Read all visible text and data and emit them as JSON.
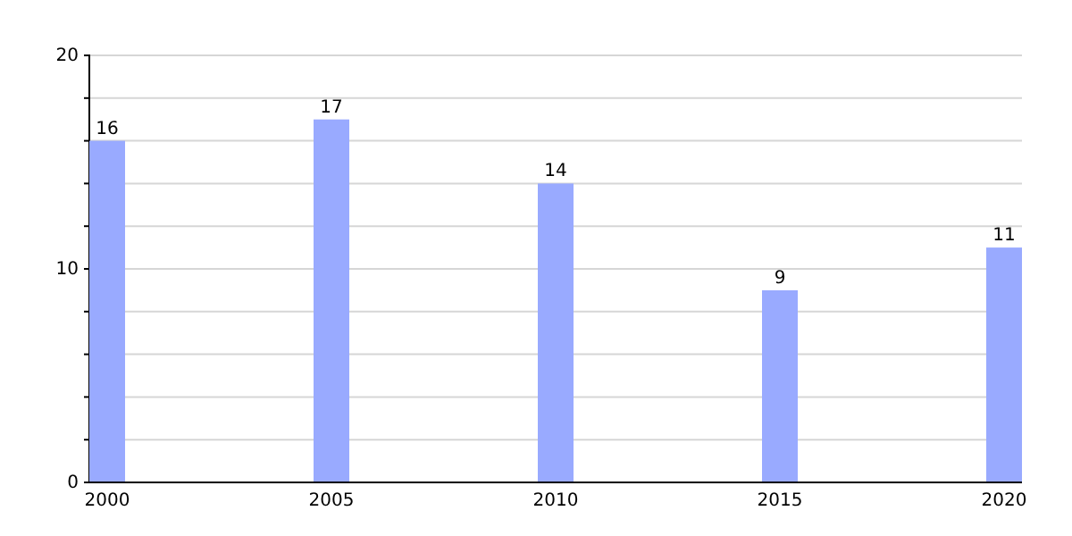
{
  "chart_data": {
    "type": "bar",
    "categories": [
      "2000",
      "2005",
      "2010",
      "2015",
      "2020"
    ],
    "values": [
      16,
      17,
      14,
      9,
      11
    ],
    "color": "#99aaff",
    "ylim": [
      0,
      20
    ],
    "yticks": [
      0,
      {
        "value": 2,
        "label": null
      },
      {
        "value": 4,
        "label": null
      },
      {
        "value": 6,
        "label": null
      },
      {
        "value": 8,
        "label": null
      },
      10,
      {
        "value": 12,
        "label": null
      },
      {
        "value": 14,
        "label": null
      },
      {
        "value": 16,
        "label": null
      },
      {
        "value": 18,
        "label": null
      },
      20
    ],
    "grid": true,
    "data_labels": true
  }
}
